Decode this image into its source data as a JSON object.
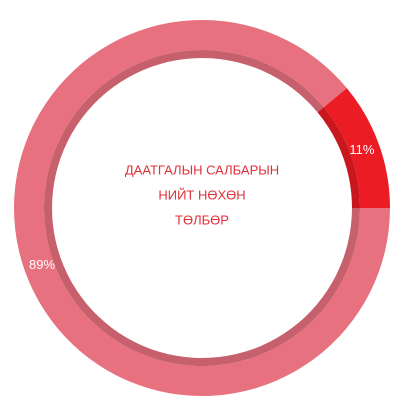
{
  "chart_data": {
    "type": "pie",
    "title": [
      "ДААТГАЛЫН САЛБАРЫН",
      "НИЙТ НӨХӨН",
      "ТӨЛБӨР"
    ],
    "categories": [
      null,
      null
    ],
    "values": [
      89,
      11
    ],
    "value_labels": [
      "89%",
      "11%"
    ],
    "colors": [
      "#e8717f",
      "#ec1c24"
    ],
    "title_color": "#e0303a"
  }
}
